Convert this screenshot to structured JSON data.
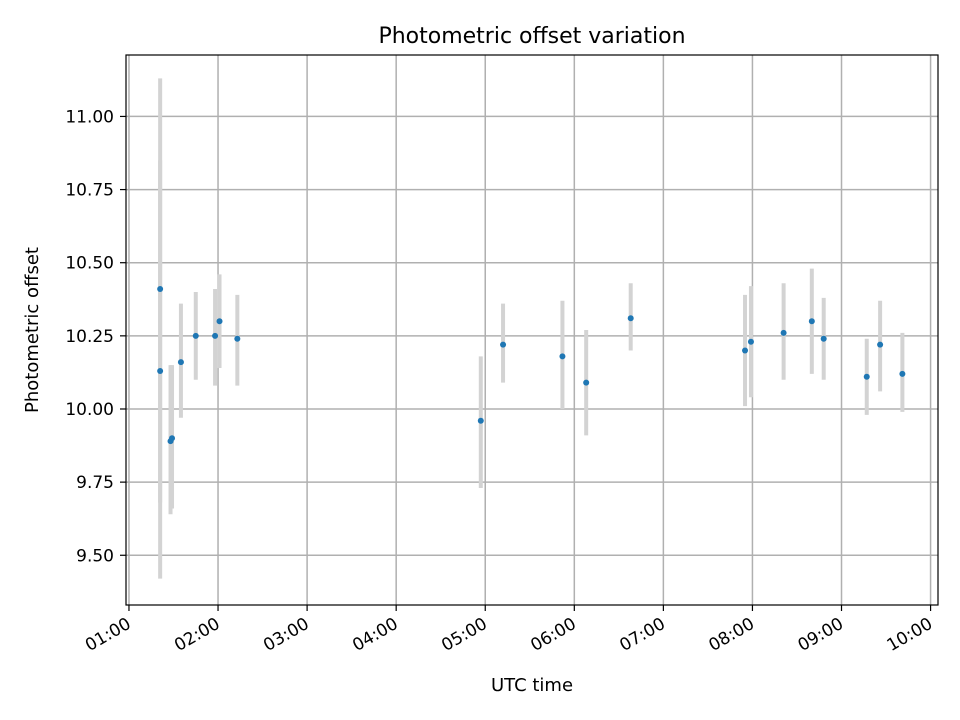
{
  "chart_data": {
    "type": "scatter",
    "title": "Photometric offset variation",
    "xlabel": "UTC time",
    "ylabel": "Photometric offset",
    "xlim": [
      "00:58",
      "10:05"
    ],
    "ylim": [
      9.33,
      11.21
    ],
    "x_ticks": [
      "01:00",
      "02:00",
      "03:00",
      "04:00",
      "05:00",
      "06:00",
      "07:00",
      "08:00",
      "09:00",
      "10:00"
    ],
    "y_ticks": [
      9.5,
      9.75,
      10.0,
      10.25,
      10.5,
      10.75,
      11.0
    ],
    "y_tick_labels": [
      "9.50",
      "9.75",
      "10.00",
      "10.25",
      "10.50",
      "10.75",
      "11.00"
    ],
    "grid": true,
    "colors": {
      "points": "#1f77b4",
      "errorbars": "#d3d3d3",
      "grid": "#b0b0b0"
    },
    "series": [
      {
        "points": [
          {
            "x": "01:21",
            "y": 10.41,
            "ylo": 9.68,
            "yhi": 11.13
          },
          {
            "x": "01:21",
            "y": 10.13,
            "ylo": 9.42,
            "yhi": 10.85
          },
          {
            "x": "01:28",
            "y": 9.89,
            "ylo": 9.64,
            "yhi": 10.15
          },
          {
            "x": "01:29",
            "y": 9.9,
            "ylo": 9.66,
            "yhi": 10.15
          },
          {
            "x": "01:35",
            "y": 10.16,
            "ylo": 9.97,
            "yhi": 10.36
          },
          {
            "x": "01:45",
            "y": 10.25,
            "ylo": 10.1,
            "yhi": 10.4
          },
          {
            "x": "01:58",
            "y": 10.25,
            "ylo": 10.08,
            "yhi": 10.41
          },
          {
            "x": "02:01",
            "y": 10.3,
            "ylo": 10.14,
            "yhi": 10.46
          },
          {
            "x": "02:13",
            "y": 10.24,
            "ylo": 10.08,
            "yhi": 10.39
          },
          {
            "x": "04:57",
            "y": 9.96,
            "ylo": 9.73,
            "yhi": 10.18
          },
          {
            "x": "05:12",
            "y": 10.22,
            "ylo": 10.09,
            "yhi": 10.36
          },
          {
            "x": "05:52",
            "y": 10.18,
            "ylo": 10.0,
            "yhi": 10.37
          },
          {
            "x": "06:08",
            "y": 10.09,
            "ylo": 9.91,
            "yhi": 10.27
          },
          {
            "x": "06:38",
            "y": 10.31,
            "ylo": 10.2,
            "yhi": 10.43
          },
          {
            "x": "07:55",
            "y": 10.2,
            "ylo": 10.01,
            "yhi": 10.39
          },
          {
            "x": "07:59",
            "y": 10.23,
            "ylo": 10.04,
            "yhi": 10.42
          },
          {
            "x": "08:21",
            "y": 10.26,
            "ylo": 10.1,
            "yhi": 10.43
          },
          {
            "x": "08:40",
            "y": 10.3,
            "ylo": 10.12,
            "yhi": 10.48
          },
          {
            "x": "08:48",
            "y": 10.24,
            "ylo": 10.1,
            "yhi": 10.38
          },
          {
            "x": "09:17",
            "y": 10.11,
            "ylo": 9.98,
            "yhi": 10.24
          },
          {
            "x": "09:26",
            "y": 10.22,
            "ylo": 10.06,
            "yhi": 10.37
          },
          {
            "x": "09:41",
            "y": 10.12,
            "ylo": 9.99,
            "yhi": 10.26
          }
        ]
      }
    ]
  }
}
